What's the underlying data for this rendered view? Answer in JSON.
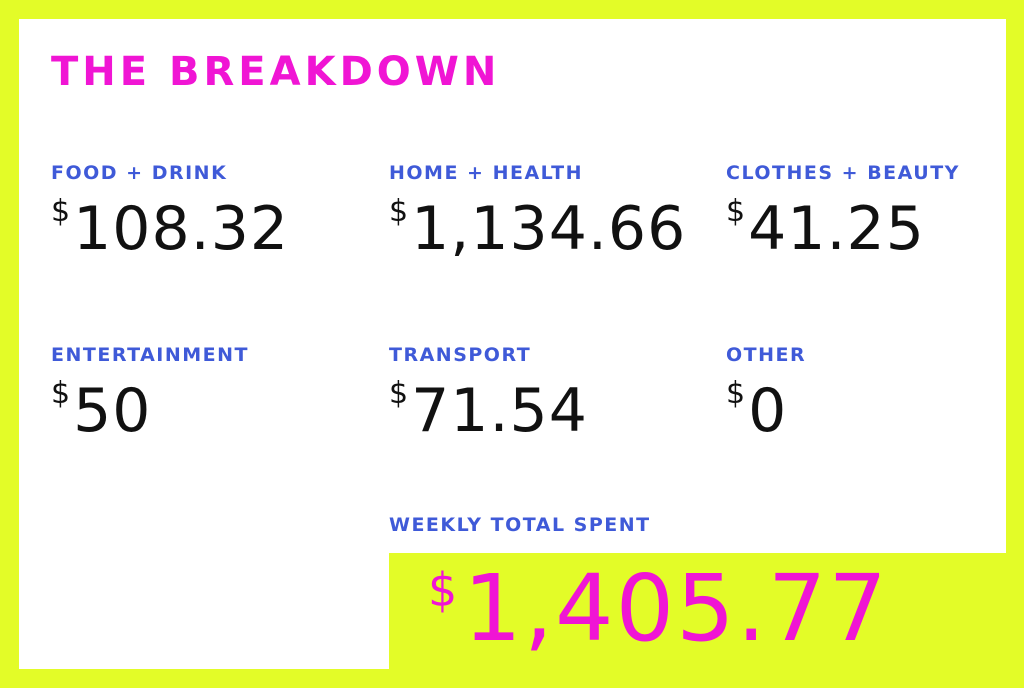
{
  "title": "THE BREAKDOWN",
  "currency_symbol": "$",
  "categories": [
    {
      "label": "FOOD + DRINK",
      "amount": "108.32"
    },
    {
      "label": "HOME + HEALTH",
      "amount": "1,134.66"
    },
    {
      "label": "CLOTHES + BEAUTY",
      "amount": "41.25"
    },
    {
      "label": "ENTERTAINMENT",
      "amount": "50"
    },
    {
      "label": "TRANSPORT",
      "amount": "71.54"
    },
    {
      "label": "OTHER",
      "amount": "0"
    }
  ],
  "total": {
    "label": "WEEKLY TOTAL SPENT",
    "amount": "1,405.77"
  },
  "colors": {
    "background": "#e3fc28",
    "title": "#f015d4",
    "label": "#3f5ad8",
    "amount": "#111111"
  }
}
